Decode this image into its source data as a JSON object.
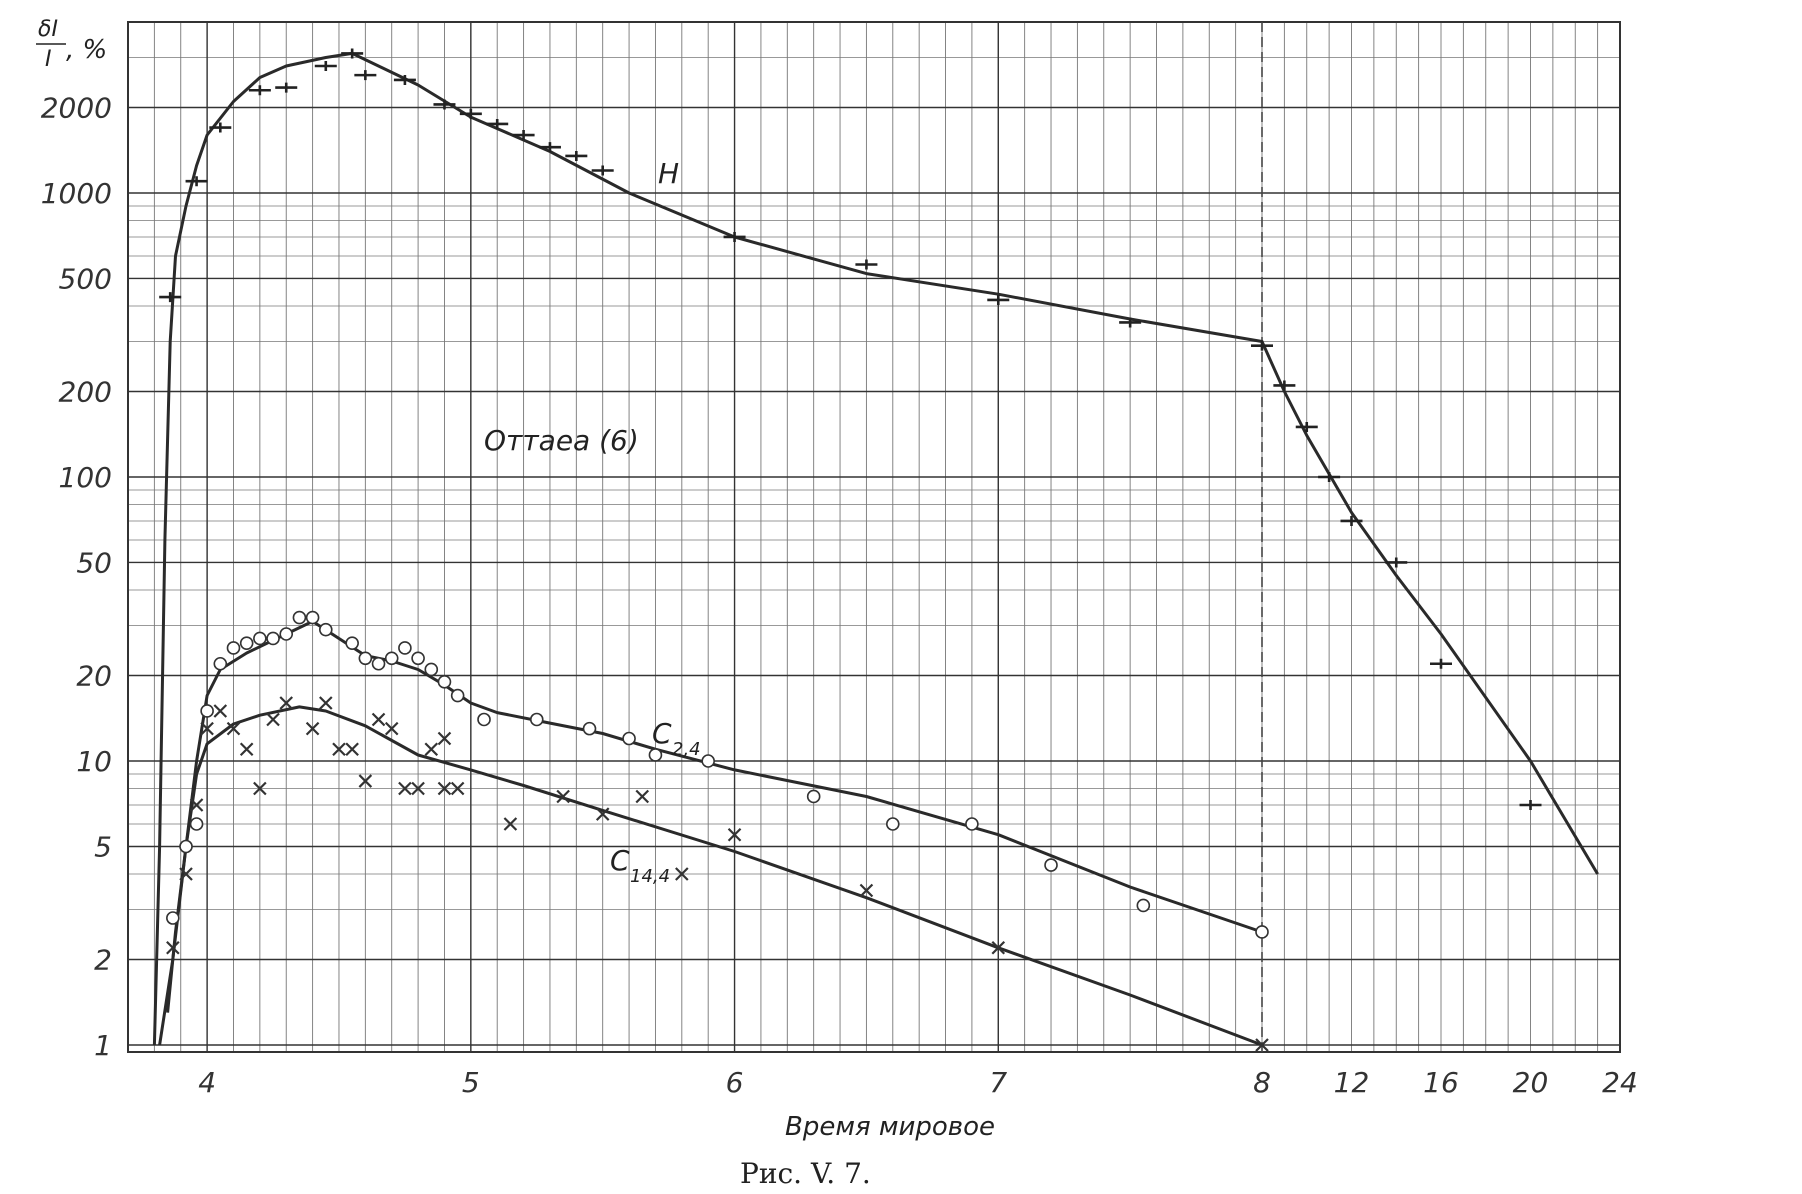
{
  "chart_data": {
    "type": "line",
    "ylabel_num": "δI",
    "ylabel_den": "I",
    "ylabel_unit": ", %",
    "xlabel": "Время мировое",
    "caption": "Рис. V. 7.",
    "annotation": "Оттаеа (6)",
    "y_scale": "log",
    "ylim": [
      1,
      4000
    ],
    "y_ticks": [
      1,
      2,
      5,
      10,
      20,
      50,
      100,
      200,
      500,
      1000,
      2000
    ],
    "x_ticks_main": [
      4,
      5,
      6,
      7,
      8
    ],
    "x_ticks_tail": [
      12,
      16,
      20,
      24
    ],
    "x_tick_labels": [
      "4",
      "5",
      "6",
      "7",
      "8",
      "12",
      "16",
      "20",
      "24"
    ],
    "grid": true,
    "series": [
      {
        "name": "H",
        "marker": "dash",
        "curve": [
          [
            3.8,
            1
          ],
          [
            3.82,
            5
          ],
          [
            3.84,
            60
          ],
          [
            3.86,
            300
          ],
          [
            3.88,
            600
          ],
          [
            3.92,
            900
          ],
          [
            3.96,
            1250
          ],
          [
            4.0,
            1600
          ],
          [
            4.1,
            2100
          ],
          [
            4.2,
            2550
          ],
          [
            4.3,
            2800
          ],
          [
            4.45,
            3000
          ],
          [
            4.55,
            3100
          ],
          [
            4.65,
            2800
          ],
          [
            4.8,
            2400
          ],
          [
            5.0,
            1850
          ],
          [
            5.3,
            1400
          ],
          [
            5.6,
            1000
          ],
          [
            6.0,
            700
          ],
          [
            6.5,
            520
          ],
          [
            7.0,
            440
          ],
          [
            7.5,
            360
          ],
          [
            8.0,
            300
          ],
          [
            9,
            200
          ],
          [
            10,
            140
          ],
          [
            12,
            75
          ],
          [
            14,
            45
          ],
          [
            16,
            28
          ],
          [
            20,
            10
          ],
          [
            23,
            4
          ]
        ],
        "points": [
          [
            3.86,
            430
          ],
          [
            3.96,
            1100
          ],
          [
            4.05,
            1700
          ],
          [
            4.2,
            2300
          ],
          [
            4.3,
            2350
          ],
          [
            4.45,
            2800
          ],
          [
            4.55,
            3100
          ],
          [
            4.6,
            2600
          ],
          [
            4.75,
            2500
          ],
          [
            4.9,
            2050
          ],
          [
            5.0,
            1900
          ],
          [
            5.1,
            1750
          ],
          [
            5.2,
            1600
          ],
          [
            5.3,
            1450
          ],
          [
            5.4,
            1350
          ],
          [
            5.5,
            1200
          ],
          [
            6.0,
            700
          ],
          [
            6.5,
            560
          ],
          [
            7.0,
            420
          ],
          [
            7.5,
            350
          ],
          [
            8.0,
            290
          ],
          [
            9.0,
            210
          ],
          [
            10.0,
            150
          ],
          [
            11.0,
            100
          ],
          [
            12.0,
            70
          ],
          [
            14.0,
            50
          ],
          [
            16.0,
            22
          ],
          [
            20.0,
            7
          ]
        ]
      },
      {
        "name": "C",
        "name_sub": "2,4",
        "marker": "circle",
        "curve": [
          [
            3.85,
            1.3
          ],
          [
            3.88,
            2.5
          ],
          [
            3.92,
            5
          ],
          [
            3.96,
            10
          ],
          [
            4.0,
            17
          ],
          [
            4.05,
            21
          ],
          [
            4.15,
            24
          ],
          [
            4.3,
            28
          ],
          [
            4.4,
            31
          ],
          [
            4.5,
            27
          ],
          [
            4.6,
            23.5
          ],
          [
            4.7,
            22.5
          ],
          [
            4.8,
            21
          ],
          [
            4.9,
            18.5
          ],
          [
            5.0,
            16
          ],
          [
            5.1,
            14.8
          ],
          [
            5.3,
            13.6
          ],
          [
            5.5,
            12.5
          ],
          [
            5.7,
            11
          ],
          [
            6.0,
            9.3
          ],
          [
            6.5,
            7.5
          ],
          [
            7.0,
            5.5
          ],
          [
            7.5,
            3.6
          ],
          [
            8.0,
            2.5
          ]
        ],
        "points": [
          [
            3.87,
            2.8
          ],
          [
            3.92,
            5
          ],
          [
            3.96,
            6
          ],
          [
            4.0,
            15
          ],
          [
            4.05,
            22
          ],
          [
            4.1,
            25
          ],
          [
            4.15,
            26
          ],
          [
            4.2,
            27
          ],
          [
            4.25,
            27
          ],
          [
            4.3,
            28
          ],
          [
            4.35,
            32
          ],
          [
            4.4,
            32
          ],
          [
            4.45,
            29
          ],
          [
            4.55,
            26
          ],
          [
            4.6,
            23
          ],
          [
            4.65,
            22
          ],
          [
            4.7,
            23
          ],
          [
            4.75,
            25
          ],
          [
            4.8,
            23
          ],
          [
            4.85,
            21
          ],
          [
            4.9,
            19
          ],
          [
            4.95,
            17
          ],
          [
            5.05,
            14
          ],
          [
            5.25,
            14
          ],
          [
            5.45,
            13
          ],
          [
            5.6,
            12
          ],
          [
            5.7,
            10.5
          ],
          [
            5.9,
            10
          ],
          [
            6.3,
            7.5
          ],
          [
            6.6,
            6
          ],
          [
            6.9,
            6
          ],
          [
            7.2,
            4.3
          ],
          [
            7.55,
            3.1
          ],
          [
            8.0,
            2.5
          ]
        ]
      },
      {
        "name": "C",
        "name_sub": "14,4",
        "marker": "x",
        "curve": [
          [
            3.82,
            1
          ],
          [
            3.87,
            2
          ],
          [
            3.92,
            5
          ],
          [
            3.96,
            9
          ],
          [
            4.0,
            11.5
          ],
          [
            4.1,
            13.5
          ],
          [
            4.2,
            14.5
          ],
          [
            4.35,
            15.5
          ],
          [
            4.45,
            15
          ],
          [
            4.6,
            13.3
          ],
          [
            4.8,
            10.5
          ],
          [
            5.0,
            9.3
          ],
          [
            5.2,
            8.2
          ],
          [
            5.5,
            6.7
          ],
          [
            6.0,
            4.8
          ],
          [
            6.5,
            3.3
          ],
          [
            7.0,
            2.2
          ],
          [
            7.5,
            1.5
          ],
          [
            8.0,
            1
          ]
        ],
        "points": [
          [
            3.87,
            2.2
          ],
          [
            3.92,
            4
          ],
          [
            3.96,
            7
          ],
          [
            4.0,
            13
          ],
          [
            4.05,
            15
          ],
          [
            4.1,
            13
          ],
          [
            4.15,
            11
          ],
          [
            4.2,
            8
          ],
          [
            4.25,
            14
          ],
          [
            4.3,
            16
          ],
          [
            4.4,
            13
          ],
          [
            4.45,
            16
          ],
          [
            4.5,
            11
          ],
          [
            4.55,
            11
          ],
          [
            4.6,
            8.5
          ],
          [
            4.65,
            14
          ],
          [
            4.7,
            13
          ],
          [
            4.75,
            8
          ],
          [
            4.8,
            8
          ],
          [
            4.9,
            8
          ],
          [
            4.95,
            8
          ],
          [
            4.85,
            11
          ],
          [
            4.9,
            12
          ],
          [
            5.15,
            6
          ],
          [
            5.35,
            7.5
          ],
          [
            5.5,
            6.5
          ],
          [
            5.65,
            7.5
          ],
          [
            5.8,
            4
          ],
          [
            6.0,
            5.5
          ],
          [
            6.5,
            3.5
          ],
          [
            7.0,
            2.2
          ],
          [
            8.0,
            1
          ]
        ]
      }
    ]
  }
}
